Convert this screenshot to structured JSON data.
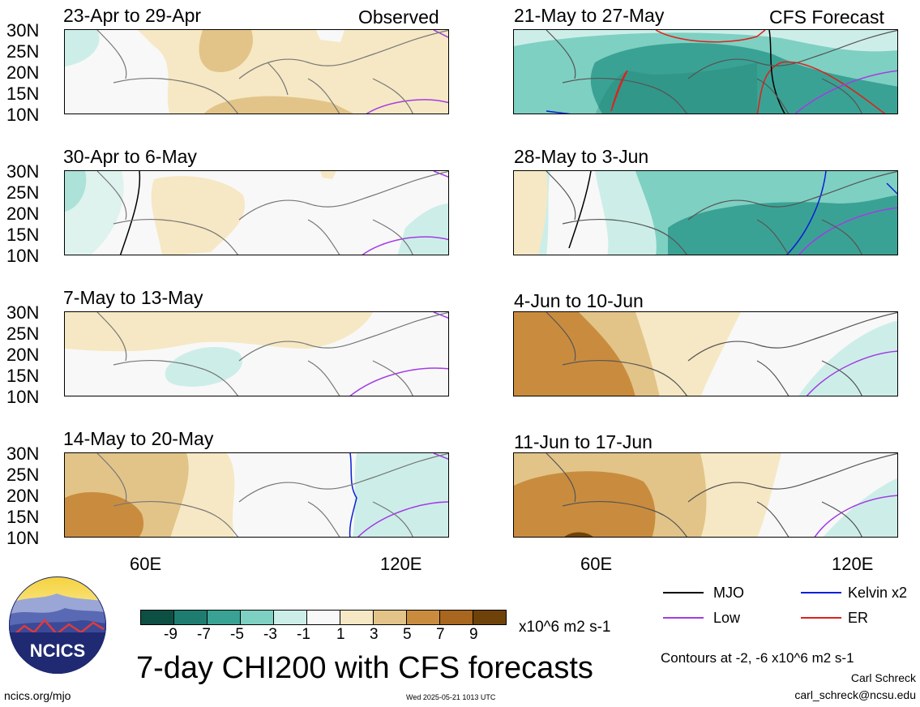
{
  "panels": [
    {
      "title": "23-Apr to 29-Apr",
      "tag": "Observed"
    },
    {
      "title": "30-Apr to 6-May",
      "tag": ""
    },
    {
      "title": "7-May to 13-May",
      "tag": ""
    },
    {
      "title": "14-May to 20-May",
      "tag": ""
    },
    {
      "title": "21-May to 27-May",
      "tag": "CFS Forecast"
    },
    {
      "title": "28-May to 3-Jun",
      "tag": ""
    },
    {
      "title": "4-Jun to 10-Jun",
      "tag": ""
    },
    {
      "title": "11-Jun to 17-Jun",
      "tag": ""
    }
  ],
  "lat_labels": [
    "30N",
    "25N",
    "20N",
    "15N",
    "10N"
  ],
  "lon_labels": [
    "60E",
    "120E"
  ],
  "colorbar": {
    "colors": [
      "#0e4f44",
      "#1e7d70",
      "#3aa294",
      "#7ed0c2",
      "#cdeee8",
      "#f8f8f8",
      "#f6e8c4",
      "#e2c488",
      "#c98c3e",
      "#a8661f",
      "#6f4209"
    ],
    "ticks": [
      "-9",
      "-7",
      "-5",
      "-3",
      "-1",
      "1",
      "3",
      "5",
      "7",
      "9"
    ],
    "units": "x10^6 m2 s-1"
  },
  "legend": {
    "items": [
      {
        "label": "MJO",
        "color": "#000000"
      },
      {
        "label": "Kelvin x2",
        "color": "#0b1fd6"
      },
      {
        "label": "Low",
        "color": "#a33be6"
      },
      {
        "label": "ER",
        "color": "#e0201a"
      }
    ]
  },
  "logo_text": "NCICS",
  "main_title": "7-day CHI200 with CFS forecasts",
  "contours_note": "Contours at -2, -6 x10^6 m2 s-1",
  "author": "Carl Schreck",
  "email": "carl_schreck@ncsu.edu",
  "url": "ncics.org/mjo",
  "timestamp": "Wed 2025-05-21 1013 UTC"
}
